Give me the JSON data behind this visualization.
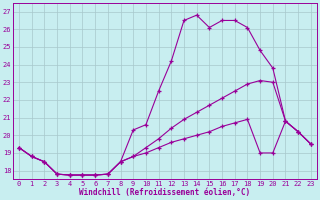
{
  "xlabel": "Windchill (Refroidissement éolien,°C)",
  "bg_color": "#c8eef0",
  "line_color": "#990099",
  "grid_color": "#a8c8cc",
  "xlim": [
    -0.5,
    23.5
  ],
  "ylim": [
    17.5,
    27.5
  ],
  "yticks": [
    18,
    19,
    20,
    21,
    22,
    23,
    24,
    25,
    26,
    27
  ],
  "xticks": [
    0,
    1,
    2,
    3,
    4,
    5,
    6,
    7,
    8,
    9,
    10,
    11,
    12,
    13,
    14,
    15,
    16,
    17,
    18,
    19,
    20,
    21,
    22,
    23
  ],
  "series": [
    {
      "x": [
        0,
        1,
        2,
        3,
        4,
        5,
        6,
        7,
        8,
        9,
        10,
        11,
        12,
        13,
        14,
        15,
        16,
        17,
        18,
        19,
        20,
        21,
        22,
        23
      ],
      "y": [
        19.3,
        18.8,
        18.5,
        17.8,
        17.75,
        17.75,
        17.75,
        17.8,
        18.5,
        20.3,
        20.6,
        22.5,
        24.2,
        26.5,
        26.8,
        26.1,
        26.5,
        26.5,
        26.1,
        24.8,
        23.8,
        20.8,
        20.2,
        19.5
      ]
    },
    {
      "x": [
        0,
        1,
        2,
        3,
        4,
        5,
        6,
        7,
        8,
        9,
        10,
        11,
        12,
        13,
        14,
        15,
        16,
        17,
        18,
        19,
        20,
        21,
        22,
        23
      ],
      "y": [
        19.3,
        18.8,
        18.5,
        17.8,
        17.75,
        17.75,
        17.75,
        17.8,
        18.5,
        18.8,
        19.3,
        19.8,
        20.4,
        20.9,
        21.3,
        21.7,
        22.1,
        22.5,
        22.9,
        23.1,
        23.0,
        20.8,
        20.2,
        19.5
      ]
    },
    {
      "x": [
        0,
        1,
        2,
        3,
        4,
        5,
        6,
        7,
        8,
        9,
        10,
        11,
        12,
        13,
        14,
        15,
        16,
        17,
        18,
        19,
        20,
        21,
        22,
        23
      ],
      "y": [
        19.3,
        18.8,
        18.5,
        17.8,
        17.75,
        17.75,
        17.75,
        17.8,
        18.5,
        18.8,
        19.0,
        19.3,
        19.6,
        19.8,
        20.0,
        20.2,
        20.5,
        20.7,
        20.9,
        19.0,
        19.0,
        20.8,
        20.2,
        19.5
      ]
    }
  ]
}
